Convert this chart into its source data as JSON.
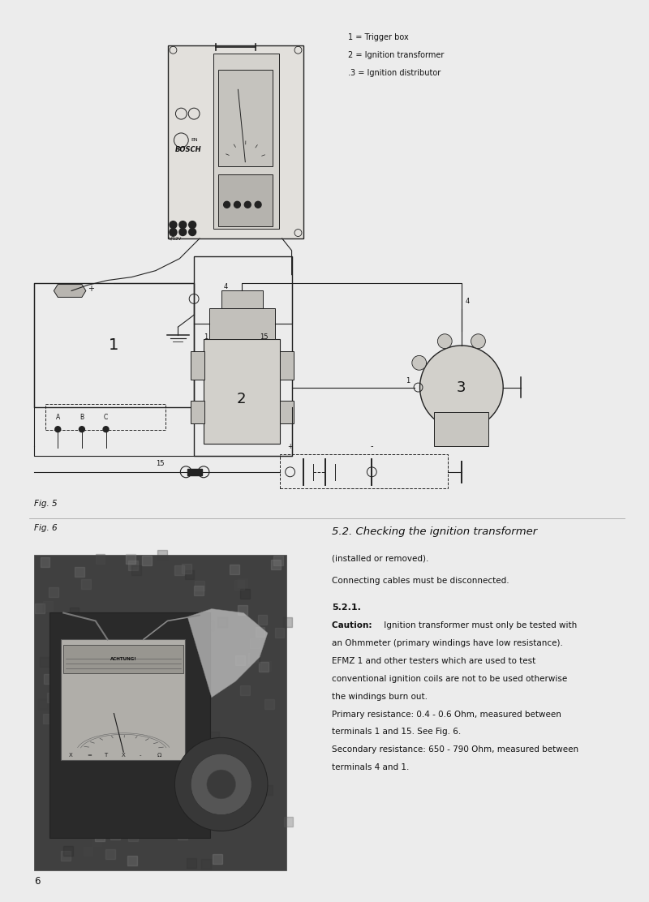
{
  "bg_color": "#ececec",
  "page_width": 8.0,
  "page_height": 11.12,
  "legend_text": [
    "1 = Trigger box",
    "2 = Ignition transformer",
    ".3 = Ignition distributor"
  ],
  "fig5_label": "Fig. 5",
  "fig6_label": "Fig. 6",
  "page_number": "6",
  "section_title": "5.2. Checking the ignition transformer",
  "section_sub1": "(installed or removed).",
  "section_sub2": "Connecting cables must be disconnected.",
  "section_sub3": "5.2.1.",
  "caution_bold": "Caution: ",
  "caution_rest": " Ignition transformer must only be tested with",
  "body_lines": [
    "an Ohmmeter (primary windings have low resistance).",
    "EFMZ 1 and other testers which are used to test",
    "conventional ignition coils are not to be used otherwise",
    "the windings burn out.",
    "Primary resistance: 0.4 - 0.6 Ohm, measured between",
    "terminals 1 and 15. See Fig. 6.",
    "Secondary resistance: 650 - 790 Ohm, measured between",
    "terminals 4 and 1."
  ]
}
